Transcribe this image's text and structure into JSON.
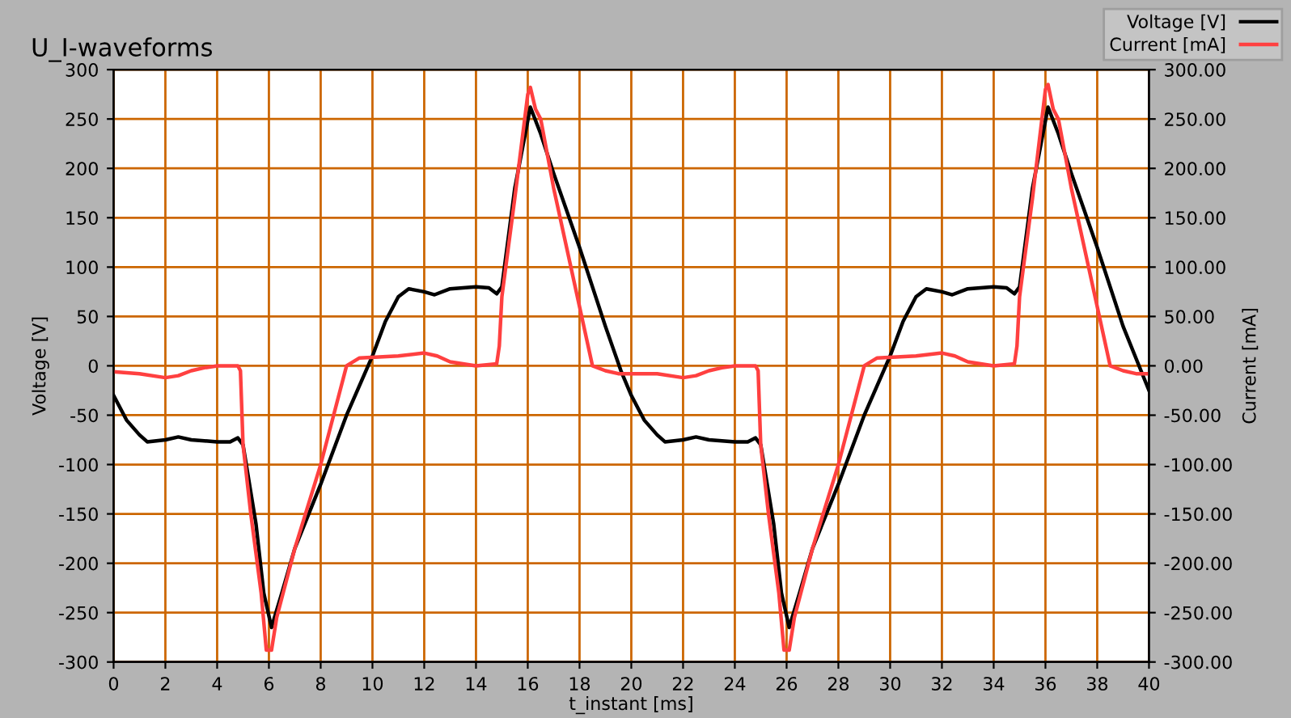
{
  "chart_data": {
    "type": "line",
    "title": "U_I-waveforms",
    "xlabel": "t_instant [ms]",
    "ylabel": "Voltage [V]",
    "y2label": "Current [mA]",
    "series": [
      {
        "name": "Voltage [V]",
        "color": "#000000",
        "axis": "y",
        "x": [
          0,
          0.5,
          1,
          1.3,
          2,
          2.5,
          3,
          4,
          4.5,
          4.8,
          5,
          5.5,
          5.8,
          6.1,
          6.5,
          7,
          8,
          9,
          10,
          10.5,
          11,
          11.4,
          12,
          12.4,
          13,
          14,
          14.5,
          14.8,
          15,
          15.5,
          16.1,
          16.5,
          17,
          18,
          19,
          19.6,
          20,
          20.5,
          21,
          21.3,
          22,
          22.5,
          23,
          24,
          24.5,
          24.8,
          25,
          25.5,
          25.8,
          26.1,
          26.5,
          27,
          28,
          29,
          30,
          30.5,
          31,
          31.4,
          32,
          32.4,
          33,
          34,
          34.5,
          34.8,
          35,
          35.5,
          36.1,
          36.5,
          37,
          38,
          39,
          40
        ],
        "values": [
          -30,
          -55,
          -70,
          -77,
          -75,
          -72,
          -75,
          -77,
          -77,
          -73,
          -80,
          -160,
          -230,
          -265,
          -230,
          -185,
          -120,
          -50,
          10,
          45,
          70,
          78,
          75,
          72,
          78,
          80,
          79,
          73,
          80,
          180,
          262,
          235,
          195,
          120,
          40,
          -5,
          -30,
          -55,
          -70,
          -77,
          -75,
          -72,
          -75,
          -77,
          -77,
          -73,
          -80,
          -160,
          -230,
          -265,
          -230,
          -185,
          -120,
          -50,
          10,
          45,
          70,
          78,
          75,
          72,
          78,
          80,
          79,
          73,
          80,
          180,
          262,
          235,
          195,
          120,
          40,
          -25
        ]
      },
      {
        "name": "Current [mA]",
        "color": "#ff4040",
        "axis": "y2",
        "x": [
          0,
          1,
          2,
          2.5,
          3,
          3.5,
          4,
          4.8,
          4.9,
          5,
          5.3,
          5.7,
          5.9,
          6.1,
          6.3,
          7,
          8,
          8.5,
          9,
          9.5,
          11,
          12,
          12.5,
          13,
          14,
          14.8,
          14.9,
          15,
          15.5,
          16,
          16.1,
          16.3,
          16.5,
          17,
          17.5,
          18,
          18.5,
          19,
          19.5,
          20,
          21,
          22,
          22.5,
          23,
          23.5,
          24,
          24.8,
          24.9,
          25,
          25.3,
          25.7,
          25.9,
          26.1,
          26.3,
          27,
          28,
          28.5,
          29,
          29.5,
          31,
          32,
          32.5,
          33,
          34,
          34.8,
          34.9,
          35,
          35.5,
          36,
          36.1,
          36.3,
          36.5,
          37,
          37.5,
          38,
          38.5,
          39,
          39.5,
          40
        ],
        "values": [
          -6,
          -8,
          -12,
          -10,
          -5,
          -2,
          0,
          0,
          -5,
          -80,
          -150,
          -230,
          -288,
          -288,
          -255,
          -185,
          -100,
          -50,
          0,
          8,
          10,
          13,
          10,
          4,
          0,
          2,
          20,
          70,
          170,
          275,
          282,
          260,
          250,
          180,
          120,
          60,
          0,
          -5,
          -8,
          -8,
          -8,
          -12,
          -10,
          -5,
          -2,
          0,
          0,
          -5,
          -80,
          -150,
          -230,
          -288,
          -288,
          -255,
          -185,
          -100,
          -50,
          0,
          8,
          10,
          13,
          10,
          4,
          0,
          2,
          20,
          70,
          170,
          280,
          285,
          260,
          250,
          180,
          120,
          60,
          0,
          -5,
          -8,
          -8
        ]
      }
    ],
    "xlim": [
      0,
      40
    ],
    "xticks": [
      0,
      2,
      4,
      6,
      8,
      10,
      12,
      14,
      16,
      18,
      20,
      22,
      24,
      26,
      28,
      30,
      32,
      34,
      36,
      38,
      40
    ],
    "ylim": [
      -300,
      300
    ],
    "yticks": [
      -300,
      -250,
      -200,
      -150,
      -100,
      -50,
      0,
      50,
      100,
      150,
      200,
      250,
      300
    ],
    "y2lim": [
      -300,
      300
    ],
    "y2ticks": [
      {
        "value": -300,
        "label": "-300.00"
      },
      {
        "value": -250,
        "label": "-250.00"
      },
      {
        "value": -200,
        "label": "-200.00"
      },
      {
        "value": -150,
        "label": "-150.00"
      },
      {
        "value": -100,
        "label": "-100.00"
      },
      {
        "value": -50,
        "label": "-50.00"
      },
      {
        "value": 0,
        "label": "0.00"
      },
      {
        "value": 50,
        "label": "50.00"
      },
      {
        "value": 100,
        "label": "100.00"
      },
      {
        "value": 150,
        "label": "150.00"
      },
      {
        "value": 200,
        "label": "200.00"
      },
      {
        "value": 250,
        "label": "250.00"
      },
      {
        "value": 300,
        "label": "300.00"
      }
    ],
    "grid": true,
    "legend": "top right",
    "marker": "none",
    "line_style": "solid"
  }
}
